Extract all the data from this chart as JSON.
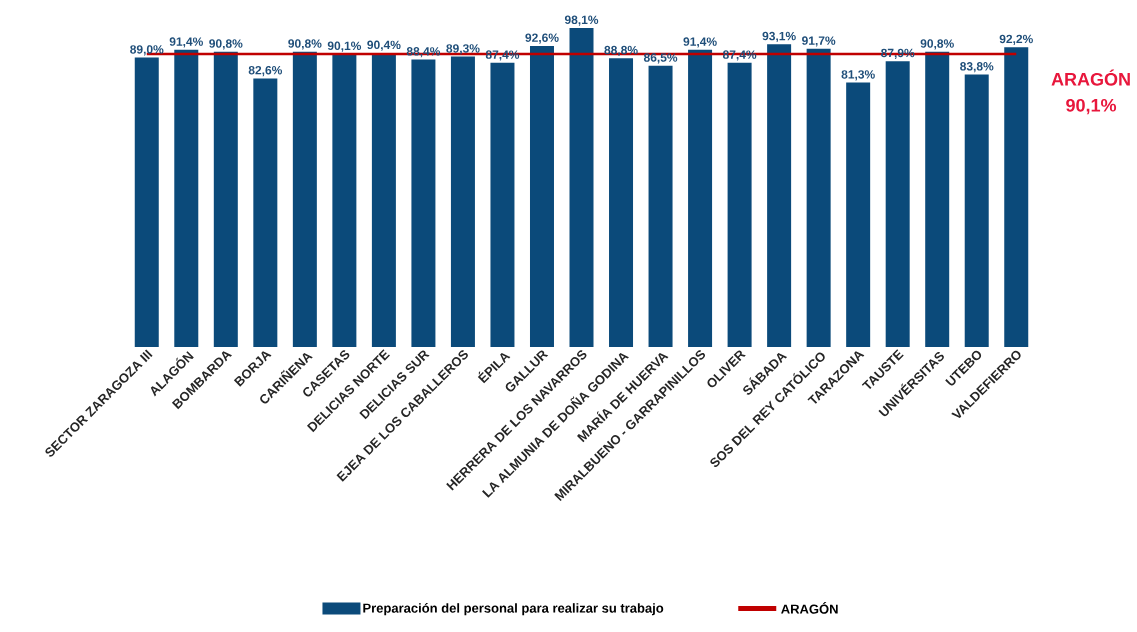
{
  "chart_data": {
    "type": "bar",
    "categories": [
      "SECTOR ZARAGOZA III",
      "ALAGÓN",
      "BOMBARDA",
      "BORJA",
      "CARIÑENA",
      "CASETAS",
      "DELICIAS NORTE",
      "DELICIAS SUR",
      "EJEA DE LOS CABALLEROS",
      "ÉPILA",
      "GALLUR",
      "HERRERA DE LOS NAVARROS",
      "LA ALMUNIA DE DOÑA GODINA",
      "MARÍA DE HUERVA",
      "MIRALBUENO - GARRAPINILLOS",
      "OLIVER",
      "SÁBADA",
      "SOS DEL REY CATÓLICO",
      "TARAZONA",
      "TAUSTE",
      "UNIVÉRSITAS",
      "UTEBO",
      "VALDEFIERRO"
    ],
    "series": [
      {
        "name": "Preparación del personal para realizar su trabajo",
        "color": "#0b4a7a",
        "values": [
          89.0,
          91.4,
          90.8,
          82.6,
          90.8,
          90.1,
          90.4,
          88.4,
          89.3,
          87.4,
          92.6,
          98.1,
          88.8,
          86.5,
          91.4,
          87.4,
          93.1,
          91.7,
          81.3,
          87.9,
          90.8,
          83.8,
          92.2
        ],
        "value_labels": [
          "89,0%",
          "91,4%",
          "90,8%",
          "82,6%",
          "90,8%",
          "90,1%",
          "90,4%",
          "88,4%",
          "89,3%",
          "87,4%",
          "92,6%",
          "98,1%",
          "88,8%",
          "86,5%",
          "91,4%",
          "87,4%",
          "93,1%",
          "91,7%",
          "81,3%",
          "87,9%",
          "90,8%",
          "83,8%",
          "92,2%"
        ]
      },
      {
        "name": "ARAGÓN",
        "type": "line",
        "color": "#c00000",
        "values": [
          90.1,
          90.1,
          90.1,
          90.1,
          90.1,
          90.1,
          90.1,
          90.1,
          90.1,
          90.1,
          90.1,
          90.1,
          90.1,
          90.1,
          90.1,
          90.1,
          90.1,
          90.1,
          90.1,
          90.1,
          90.1,
          90.1,
          90.1
        ]
      }
    ],
    "annotations": [
      "ARAGÓN 90,1%"
    ],
    "tick_labels": "x",
    "legend": "bottom"
  }
}
